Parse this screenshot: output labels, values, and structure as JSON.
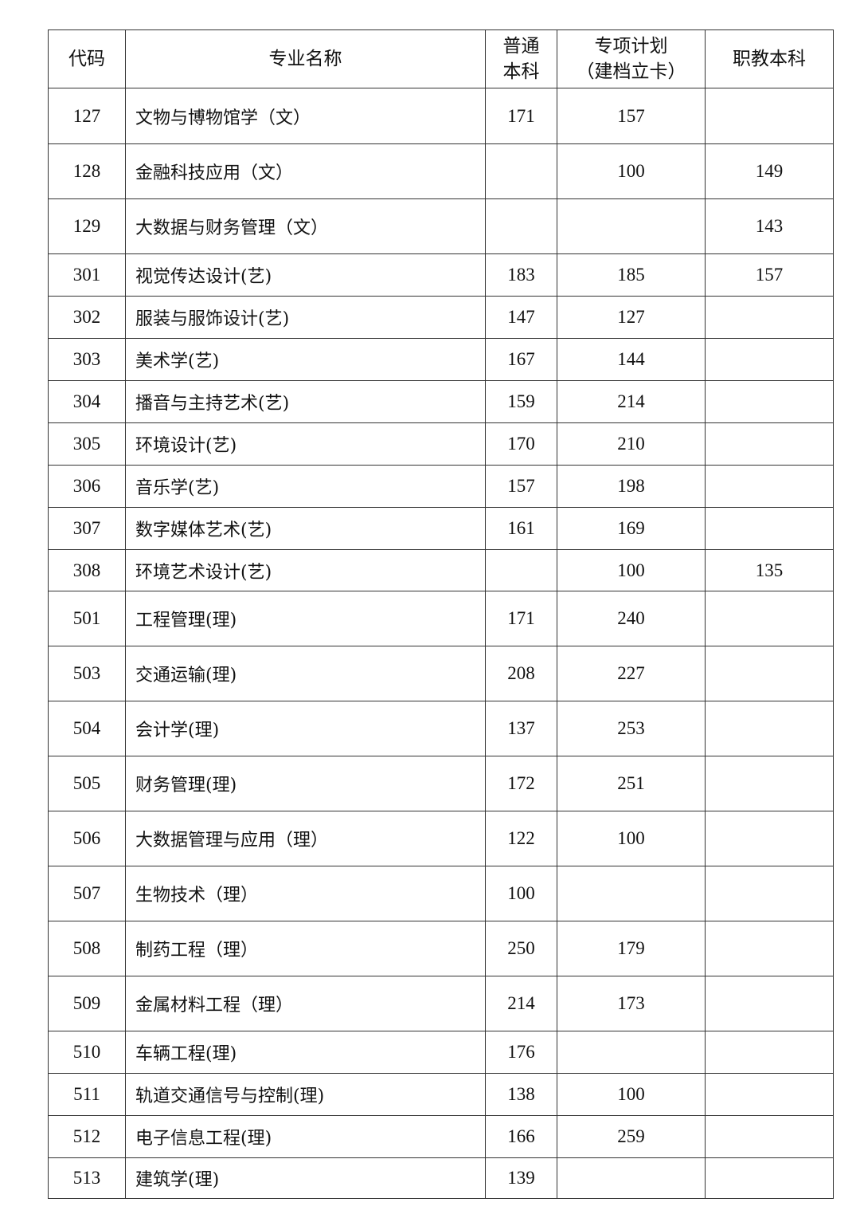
{
  "table": {
    "headers": [
      "代码",
      "专业名称",
      "普通本科",
      "专项计划（建档立卡）",
      "职教本科"
    ],
    "header_lines": {
      "general": [
        "普通",
        "本科"
      ],
      "special": [
        "专项计划",
        "（建档立卡）"
      ]
    },
    "rows": [
      {
        "code": "127",
        "name": "文物与博物馆学（文）",
        "general": "171",
        "special": "157",
        "vocational": ""
      },
      {
        "code": "128",
        "name": "金融科技应用（文）",
        "general": "",
        "special": "100",
        "vocational": "149"
      },
      {
        "code": "129",
        "name": "大数据与财务管理（文）",
        "general": "",
        "special": "",
        "vocational": "143"
      },
      {
        "code": "301",
        "name": "视觉传达设计(艺)",
        "general": "183",
        "special": "185",
        "vocational": "157"
      },
      {
        "code": "302",
        "name": "服装与服饰设计(艺)",
        "general": "147",
        "special": "127",
        "vocational": ""
      },
      {
        "code": "303",
        "name": "美术学(艺)",
        "general": "167",
        "special": "144",
        "vocational": ""
      },
      {
        "code": "304",
        "name": "播音与主持艺术(艺)",
        "general": "159",
        "special": "214",
        "vocational": ""
      },
      {
        "code": "305",
        "name": "环境设计(艺)",
        "general": "170",
        "special": "210",
        "vocational": ""
      },
      {
        "code": "306",
        "name": "音乐学(艺)",
        "general": "157",
        "special": "198",
        "vocational": ""
      },
      {
        "code": "307",
        "name": "数字媒体艺术(艺)",
        "general": "161",
        "special": "169",
        "vocational": ""
      },
      {
        "code": "308",
        "name": "环境艺术设计(艺)",
        "general": "",
        "special": "100",
        "vocational": "135"
      },
      {
        "code": "501",
        "name": "工程管理(理)",
        "general": "171",
        "special": "240",
        "vocational": ""
      },
      {
        "code": "503",
        "name": "交通运输(理)",
        "general": "208",
        "special": "227",
        "vocational": ""
      },
      {
        "code": "504",
        "name": "会计学(理)",
        "general": "137",
        "special": "253",
        "vocational": ""
      },
      {
        "code": "505",
        "name": "财务管理(理)",
        "general": "172",
        "special": "251",
        "vocational": ""
      },
      {
        "code": "506",
        "name": "大数据管理与应用（理）",
        "general": "122",
        "special": "100",
        "vocational": ""
      },
      {
        "code": "507",
        "name": "生物技术（理）",
        "general": "100",
        "special": "",
        "vocational": ""
      },
      {
        "code": "508",
        "name": "制药工程（理）",
        "general": "250",
        "special": "179",
        "vocational": ""
      },
      {
        "code": "509",
        "name": "金属材料工程（理）",
        "general": "214",
        "special": "173",
        "vocational": ""
      },
      {
        "code": "510",
        "name": "车辆工程(理)",
        "general": "176",
        "special": "",
        "vocational": ""
      },
      {
        "code": "511",
        "name": "轨道交通信号与控制(理)",
        "general": "138",
        "special": "100",
        "vocational": ""
      },
      {
        "code": "512",
        "name": "电子信息工程(理)",
        "general": "166",
        "special": "259",
        "vocational": ""
      },
      {
        "code": "513",
        "name": "建筑学(理)",
        "general": "139",
        "special": "",
        "vocational": ""
      }
    ]
  }
}
